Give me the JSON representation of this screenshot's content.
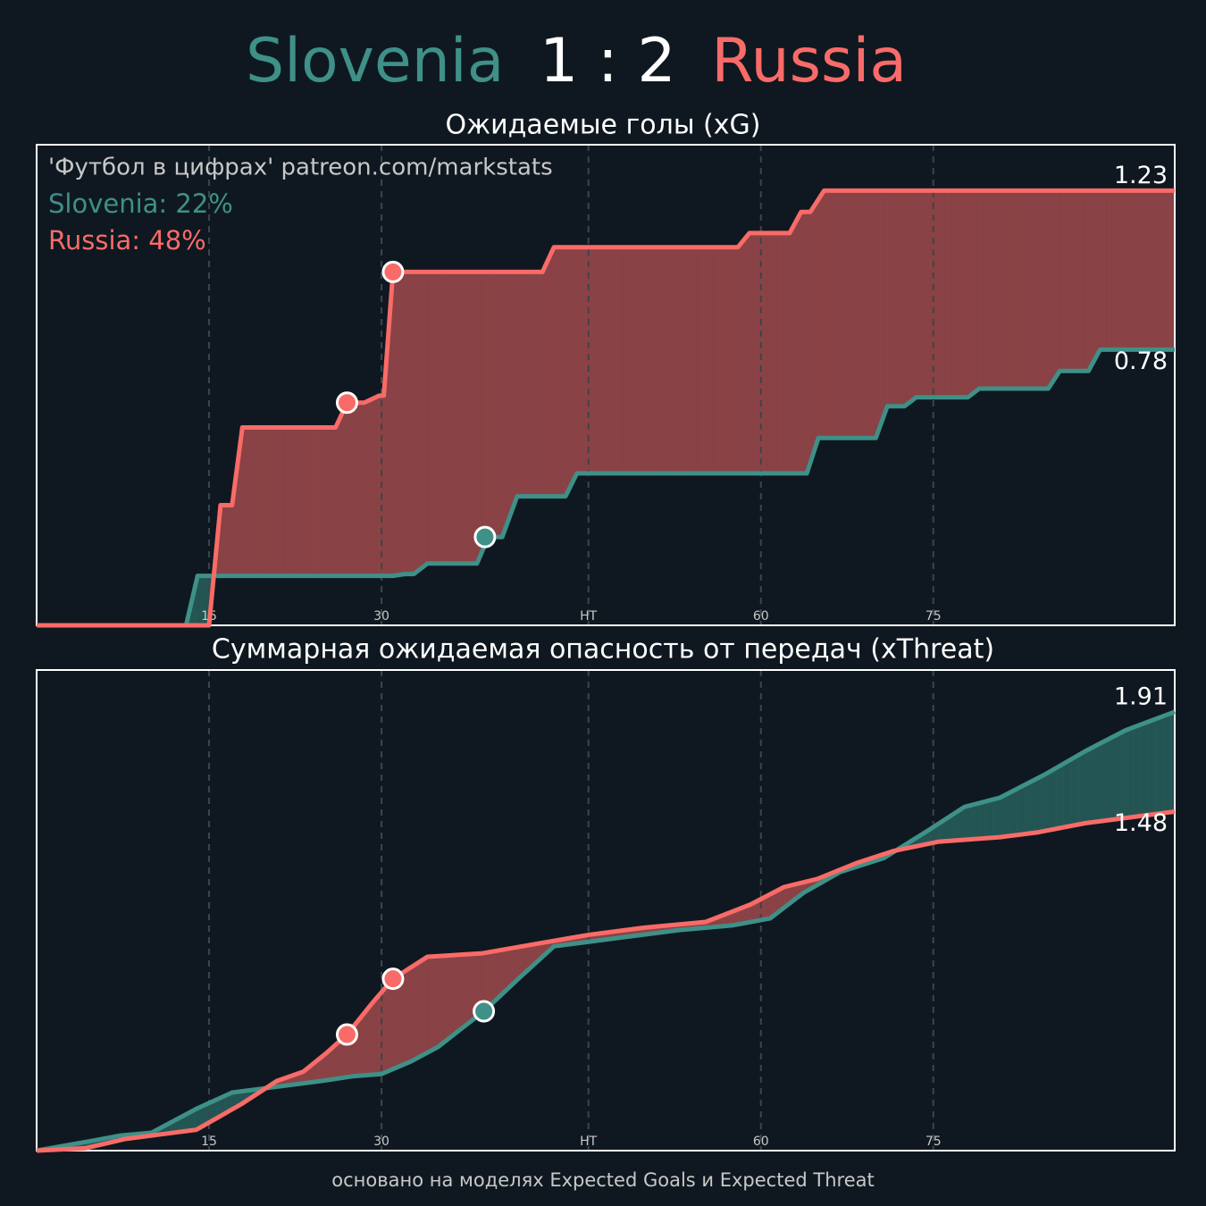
{
  "header": {
    "score": "1 : 2"
  },
  "footer": "основано на моделях Expected Goals и Expected Threat",
  "chart_data": [
    {
      "type": "line",
      "title": "Ожидаемые голы (xG)",
      "annotations": [
        "'Футбол в цифрах' patreon.com/markstats",
        "Slovenia: 22%",
        "Russia: 48%"
      ],
      "xlim": [
        0,
        99
      ],
      "ylim": [
        0,
        1.36
      ],
      "xticks": [
        15,
        30,
        {
          "value": 48,
          "label": "HT"
        },
        {
          "value": 63,
          "label": "60"
        },
        {
          "value": 78,
          "label": "75"
        }
      ],
      "grid": true,
      "series": [
        {
          "name": "Slovenia",
          "color": "#3e9088",
          "x": [
            0,
            13,
            14,
            31,
            32,
            32.8,
            34,
            38.3,
            39.3,
            40.5,
            41.8,
            46,
            47,
            67,
            68,
            73,
            74,
            75.5,
            76.5,
            81,
            82,
            88,
            89,
            91.5,
            92.5,
            99
          ],
          "values": [
            0,
            0,
            0.14,
            0.14,
            0.145,
            0.145,
            0.175,
            0.175,
            0.25,
            0.25,
            0.365,
            0.365,
            0.43,
            0.43,
            0.53,
            0.53,
            0.62,
            0.62,
            0.645,
            0.645,
            0.67,
            0.67,
            0.72,
            0.72,
            0.78,
            0.78
          ],
          "markers": [
            {
              "x": 39,
              "y": 0.25
            }
          ]
        },
        {
          "name": "Russia",
          "color": "#f96b68",
          "x": [
            0,
            15,
            16,
            17,
            17.9,
            26,
            27,
            28.5,
            29.8,
            30.2,
            31,
            44,
            45,
            61,
            62,
            65.5,
            66.5,
            67.3,
            68.5,
            99
          ],
          "values": [
            0,
            0,
            0.34,
            0.34,
            0.56,
            0.56,
            0.63,
            0.63,
            0.65,
            0.65,
            1.0,
            1.0,
            1.07,
            1.07,
            1.11,
            1.11,
            1.17,
            1.17,
            1.23,
            1.23
          ],
          "markers": [
            {
              "x": 27,
              "y": 0.63
            },
            {
              "x": 31,
              "y": 1.0
            }
          ]
        }
      ]
    },
    {
      "type": "line",
      "title": "Суммарная ожидаемая опасность от передач (xThreat)",
      "xlim": [
        0,
        99
      ],
      "ylim": [
        0.02,
        2.09
      ],
      "xticks": [
        15,
        30,
        {
          "value": 48,
          "label": "HT"
        },
        {
          "value": 63,
          "label": "60"
        },
        {
          "value": 78,
          "label": "75"
        }
      ],
      "grid": true,
      "series": [
        {
          "color": "#3e9088",
          "x": [
            0,
            4.6,
            7.3,
            10,
            13.9,
            17,
            20.1,
            24.8,
            27.5,
            30,
            32.6,
            34.9,
            36.8,
            38.9,
            41.9,
            45,
            48.1,
            51.2,
            55.9,
            60.5,
            63.8,
            66.7,
            69.9,
            73.7,
            77.6,
            80.7,
            83.8,
            87.7,
            91.2,
            94.7,
            99
          ],
          "values": [
            0.02,
            0.06,
            0.085,
            0.097,
            0.2,
            0.27,
            0.29,
            0.32,
            0.34,
            0.35,
            0.405,
            0.466,
            0.54,
            0.62,
            0.76,
            0.9,
            0.92,
            0.94,
            0.97,
            0.99,
            1.02,
            1.13,
            1.22,
            1.28,
            1.4,
            1.5,
            1.54,
            1.64,
            1.74,
            1.83,
            1.91
          ],
          "markers": [
            {
              "x": 38.9,
              "y": 0.62
            }
          ]
        },
        {
          "color": "#f96b68",
          "x": [
            0,
            4.2,
            7.7,
            10.8,
            13.9,
            17.8,
            20.9,
            23.2,
            25.2,
            27,
            29.1,
            31,
            34,
            38.8,
            43.4,
            48.1,
            52.8,
            58.2,
            62.1,
            65,
            67.9,
            71.4,
            74.5,
            78.4,
            83.8,
            87,
            91.2,
            99
          ],
          "values": [
            0.02,
            0.03,
            0.07,
            0.09,
            0.11,
            0.22,
            0.32,
            0.36,
            0.44,
            0.52,
            0.65,
            0.76,
            0.855,
            0.87,
            0.91,
            0.95,
            0.98,
            1.005,
            1.08,
            1.155,
            1.19,
            1.26,
            1.31,
            1.35,
            1.37,
            1.39,
            1.43,
            1.48
          ],
          "markers": [
            {
              "x": 27,
              "y": 0.52
            },
            {
              "x": 31,
              "y": 0.76
            }
          ]
        }
      ]
    }
  ]
}
